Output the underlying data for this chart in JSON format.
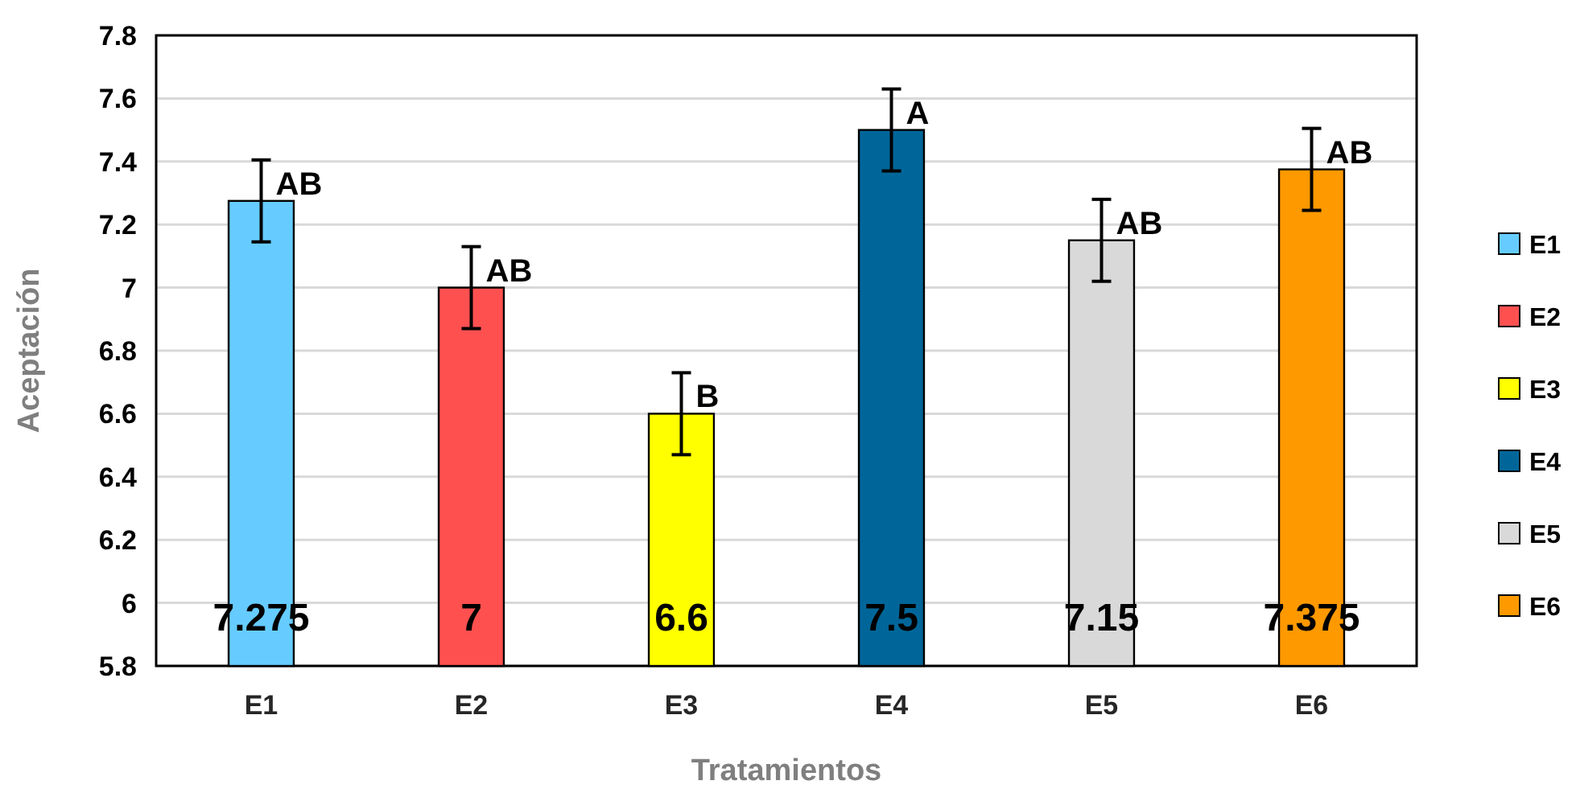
{
  "chart_data": {
    "type": "bar",
    "xlabel": "Tratamientos",
    "ylabel": "Aceptación",
    "categories": [
      "E1",
      "E2",
      "E3",
      "E4",
      "E5",
      "E6"
    ],
    "series": [
      {
        "name": "E1",
        "color": "#66ccff",
        "values": [
          7.275,
          null,
          null,
          null,
          null,
          null
        ],
        "errors": [
          0.13,
          null,
          null,
          null,
          null,
          null
        ]
      },
      {
        "name": "E2",
        "color": "#ff5050",
        "values": [
          null,
          7,
          null,
          null,
          null,
          null
        ],
        "errors": [
          null,
          0.13,
          null,
          null,
          null,
          null
        ]
      },
      {
        "name": "E3",
        "color": "#ffff00",
        "values": [
          null,
          null,
          6.6,
          null,
          null,
          null
        ],
        "errors": [
          null,
          null,
          0.13,
          null,
          null,
          null
        ]
      },
      {
        "name": "E4",
        "color": "#006699",
        "values": [
          null,
          null,
          null,
          7.5,
          null,
          null
        ],
        "errors": [
          null,
          null,
          null,
          0.13,
          null,
          null
        ]
      },
      {
        "name": "E5",
        "color": "#d9d9d9",
        "values": [
          null,
          null,
          null,
          null,
          7.15,
          null
        ],
        "errors": [
          null,
          null,
          null,
          null,
          0.13,
          null
        ]
      },
      {
        "name": "E6",
        "color": "#ff9900",
        "values": [
          null,
          null,
          null,
          null,
          null,
          7.375
        ],
        "errors": [
          null,
          null,
          null,
          null,
          null,
          0.13
        ]
      }
    ],
    "data_labels": true,
    "annotations": [
      {
        "text": "AB",
        "x": "E1",
        "y": 7.275
      },
      {
        "text": "AB",
        "x": "E2",
        "y": 7
      },
      {
        "text": "B",
        "x": "E3",
        "y": 6.6
      },
      {
        "text": "A",
        "x": "E4",
        "y": 7.5
      },
      {
        "text": "AB",
        "x": "E5",
        "y": 7.15
      },
      {
        "text": "AB",
        "x": "E6",
        "y": 7.375
      }
    ],
    "ylim": [
      5.8,
      7.8
    ],
    "yticks": [
      5.8,
      6,
      6.2,
      6.4,
      6.6,
      6.8,
      7,
      7.2,
      7.4,
      7.6,
      7.8
    ],
    "grid": "y",
    "legend": "right"
  }
}
